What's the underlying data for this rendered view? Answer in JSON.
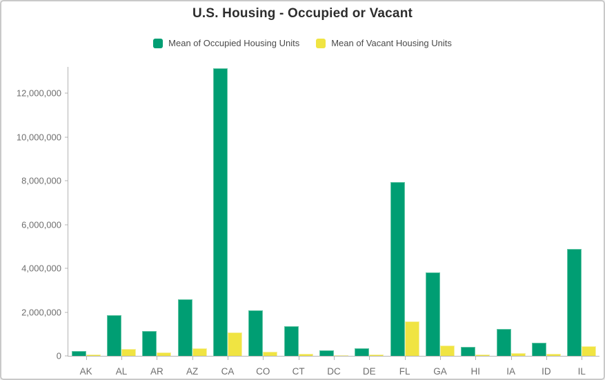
{
  "chart_data": {
    "type": "bar",
    "title": "U.S. Housing - Occupied or Vacant",
    "categories": [
      "AK",
      "AL",
      "AR",
      "AZ",
      "CA",
      "CO",
      "CT",
      "DC",
      "DE",
      "FL",
      "GA",
      "HI",
      "IA",
      "ID",
      "IL"
    ],
    "series": [
      {
        "name": "Mean of Occupied Housing Units",
        "color": "#009e73",
        "stroke": "#63c6a6",
        "values": [
          230000,
          1850000,
          1120000,
          2580000,
          13130000,
          2090000,
          1340000,
          240000,
          340000,
          7930000,
          3800000,
          420000,
          1230000,
          590000,
          4870000
        ]
      },
      {
        "name": "Mean of Vacant Housing Units",
        "color": "#f0e442",
        "stroke": "#f7f0a0",
        "values": [
          70000,
          330000,
          170000,
          360000,
          1060000,
          180000,
          110000,
          30000,
          55000,
          1580000,
          480000,
          60000,
          120000,
          80000,
          450000
        ]
      }
    ],
    "xlabel": "",
    "ylabel": "",
    "ylim": [
      0,
      13200000
    ],
    "yticks": [
      0,
      2000000,
      4000000,
      6000000,
      8000000,
      10000000,
      12000000
    ],
    "grid": false,
    "legend_position": "top"
  },
  "colors": {
    "title_text": "#2d2d2d",
    "legend_text": "#4a4a4a",
    "axis_line": "#b3b3b3",
    "tick_text": "#6e6e6e",
    "page_border": "#c9c9c9",
    "background": "#ffffff"
  }
}
